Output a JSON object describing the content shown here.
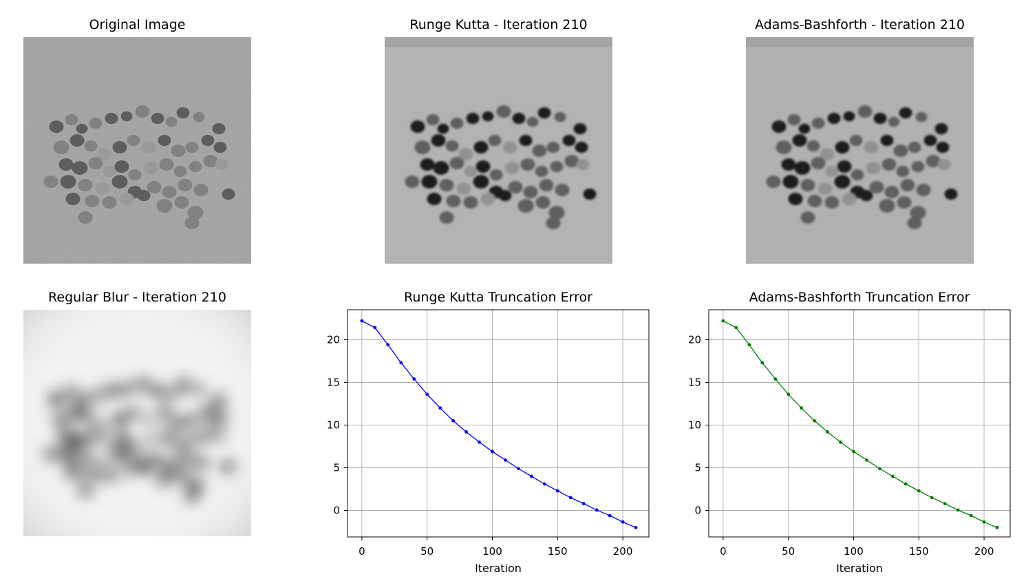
{
  "panels": {
    "original": {
      "title": "Original Image"
    },
    "runge_kutta_image": {
      "title": "Runge Kutta - Iteration 210"
    },
    "adams_bashforth_image": {
      "title": "Adams-Bashforth - Iteration 210"
    },
    "regular_blur": {
      "title": "Regular Blur - Iteration 210"
    }
  },
  "chart_data": [
    {
      "type": "line",
      "title": "Runge Kutta Truncation Error",
      "xlabel": "Iteration",
      "ylabel": "",
      "color": "#0000ff",
      "x": [
        0,
        10,
        20,
        30,
        40,
        50,
        60,
        70,
        80,
        90,
        100,
        110,
        120,
        130,
        140,
        150,
        160,
        170,
        180,
        190,
        200,
        210
      ],
      "y": [
        22.2,
        21.4,
        19.4,
        17.3,
        15.4,
        13.6,
        12.0,
        10.5,
        9.2,
        8.0,
        6.9,
        5.9,
        4.9,
        4.0,
        3.1,
        2.3,
        1.5,
        0.8,
        0.05,
        -0.6,
        -1.35,
        -2.0
      ],
      "xlim": [
        -11,
        220
      ],
      "ylim": [
        -3.1,
        23.5
      ],
      "xticks": [
        0,
        50,
        100,
        150,
        200
      ],
      "yticks": [
        0,
        5,
        10,
        15,
        20
      ],
      "grid": true
    },
    {
      "type": "line",
      "title": "Adams-Bashforth Truncation Error",
      "xlabel": "Iteration",
      "ylabel": "",
      "color": "#008000",
      "x": [
        0,
        10,
        20,
        30,
        40,
        50,
        60,
        70,
        80,
        90,
        100,
        110,
        120,
        130,
        140,
        150,
        160,
        170,
        180,
        190,
        200,
        210
      ],
      "y": [
        22.2,
        21.4,
        19.4,
        17.3,
        15.4,
        13.6,
        12.0,
        10.5,
        9.2,
        8.0,
        6.9,
        5.9,
        4.9,
        4.0,
        3.1,
        2.3,
        1.5,
        0.8,
        0.05,
        -0.6,
        -1.35,
        -2.0
      ],
      "xlim": [
        -11,
        220
      ],
      "ylim": [
        -3.1,
        23.5
      ],
      "xticks": [
        0,
        50,
        100,
        150,
        200
      ],
      "yticks": [
        0,
        5,
        10,
        15,
        20
      ],
      "grid": true
    }
  ]
}
